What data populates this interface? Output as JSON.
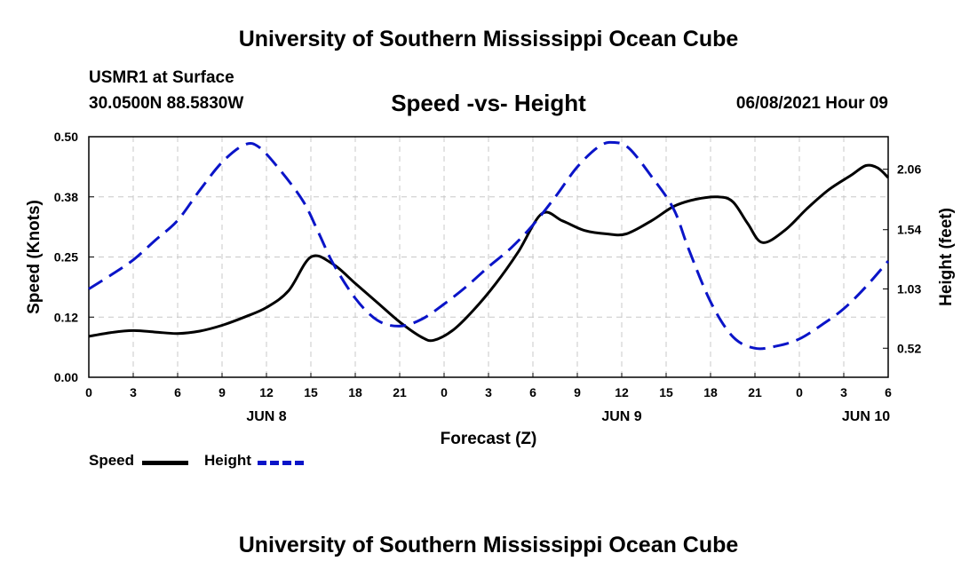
{
  "page": {
    "top_title": "University of Southern Mississippi Ocean Cube",
    "bottom_title": "University of Southern Mississippi Ocean Cube",
    "station": "USMR1 at Surface",
    "coords": "30.0500N  88.5830W",
    "datetime": "06/08/2021 Hour 09"
  },
  "colors": {
    "speed": "#000000",
    "height": "#0a14c8",
    "grid": "#c8c8c8"
  },
  "chart_data": {
    "type": "line",
    "title": "Speed -vs- Height",
    "xlabel": "Forecast (Z)",
    "ylabel": "Speed (Knots)",
    "y2label": "Height (feet)",
    "xlim": [
      0,
      54
    ],
    "ylim": [
      0,
      0.5
    ],
    "y2lim": [
      0.27,
      2.34
    ],
    "x_ticks": [
      0,
      3,
      6,
      9,
      12,
      15,
      18,
      21,
      24,
      27,
      30,
      33,
      36,
      39,
      42,
      45,
      48,
      51,
      54
    ],
    "x_tick_labels": [
      "0",
      "3",
      "6",
      "9",
      "12",
      "15",
      "18",
      "21",
      "0",
      "3",
      "6",
      "9",
      "12",
      "15",
      "18",
      "21",
      "0",
      "3",
      "6"
    ],
    "date_labels": [
      {
        "x": 12,
        "label": "JUN 8"
      },
      {
        "x": 36,
        "label": "JUN 9"
      },
      {
        "x": 52.5,
        "label": "JUN 10"
      }
    ],
    "y_ticks": [
      0,
      0.125,
      0.25,
      0.375,
      0.5
    ],
    "y_tick_labels": [
      "0.00",
      "0.12",
      "0.25",
      "0.38",
      "0.50"
    ],
    "y2_ticks": [
      0.52,
      1.03,
      1.54,
      2.06
    ],
    "y2_tick_labels": [
      "0.52",
      "1.03",
      "1.54",
      "2.06"
    ],
    "grid": true,
    "series": [
      {
        "name": "Speed",
        "axis": "left",
        "style": "solid",
        "x": [
          0,
          1.5,
          3,
          4.5,
          6,
          7.5,
          9,
          10.5,
          12,
          13.5,
          15,
          16.5,
          18,
          19.5,
          21,
          22.5,
          23.3,
          24.6,
          26,
          27.5,
          29,
          30.6,
          32,
          33.5,
          35,
          36.3,
          38,
          39.5,
          41,
          42.5,
          43.5,
          44.5,
          45.5,
          47,
          48.5,
          50,
          51.5,
          52.5,
          53.3,
          54
        ],
        "values": [
          0.085,
          0.093,
          0.097,
          0.094,
          0.091,
          0.096,
          0.108,
          0.125,
          0.145,
          0.18,
          0.25,
          0.235,
          0.195,
          0.155,
          0.115,
          0.083,
          0.077,
          0.098,
          0.14,
          0.195,
          0.26,
          0.34,
          0.325,
          0.305,
          0.298,
          0.298,
          0.325,
          0.355,
          0.37,
          0.375,
          0.365,
          0.32,
          0.28,
          0.305,
          0.35,
          0.39,
          0.42,
          0.44,
          0.435,
          0.415
        ]
      },
      {
        "name": "Height",
        "axis": "right",
        "style": "dashed",
        "x": [
          0,
          1.5,
          3,
          4.5,
          6,
          7.5,
          9,
          10.5,
          11.5,
          13,
          14.5,
          15.5,
          16.5,
          18,
          19.5,
          21,
          22.5,
          24,
          25.5,
          27,
          28.5,
          30,
          31.5,
          33,
          34.5,
          35.5,
          36.5,
          38,
          39.5,
          40.5,
          42,
          43.5,
          45,
          46.5,
          48,
          49.5,
          51,
          52.5,
          54
        ],
        "values": [
          1.03,
          1.15,
          1.28,
          1.45,
          1.62,
          1.88,
          2.12,
          2.27,
          2.25,
          2.04,
          1.78,
          1.52,
          1.25,
          0.95,
          0.76,
          0.71,
          0.77,
          0.9,
          1.05,
          1.22,
          1.38,
          1.58,
          1.82,
          2.08,
          2.26,
          2.29,
          2.24,
          2.0,
          1.72,
          1.38,
          0.92,
          0.62,
          0.52,
          0.54,
          0.6,
          0.72,
          0.86,
          1.05,
          1.27
        ]
      }
    ]
  }
}
